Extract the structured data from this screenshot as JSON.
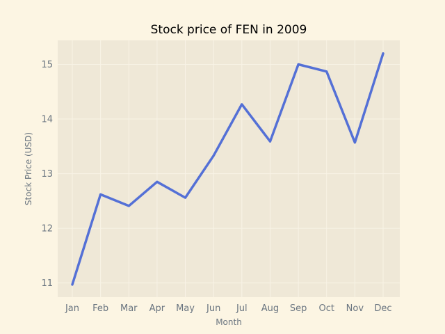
{
  "chart_data": {
    "type": "line",
    "title": "Stock price of FEN in 2009",
    "xlabel": "Month",
    "ylabel": "Stock Price (USD)",
    "categories": [
      "Jan",
      "Feb",
      "Mar",
      "Apr",
      "May",
      "Jun",
      "Jul",
      "Aug",
      "Sep",
      "Oct",
      "Nov",
      "Dec"
    ],
    "series": [
      {
        "values": [
          10.97,
          12.62,
          12.41,
          12.85,
          12.56,
          13.33,
          14.27,
          13.59,
          15.0,
          14.87,
          13.57,
          15.2
        ]
      }
    ],
    "yticks": [
      11,
      12,
      13,
      14,
      15
    ],
    "ylim": [
      10.74,
      15.44
    ],
    "grid": true,
    "legend": "none",
    "colors": {
      "line": "#5470d6",
      "plot_background": "#efe8d7",
      "page_background": "#fcf5e3",
      "grid": "#f8f3e6",
      "tick_text": "#6a7580"
    }
  }
}
